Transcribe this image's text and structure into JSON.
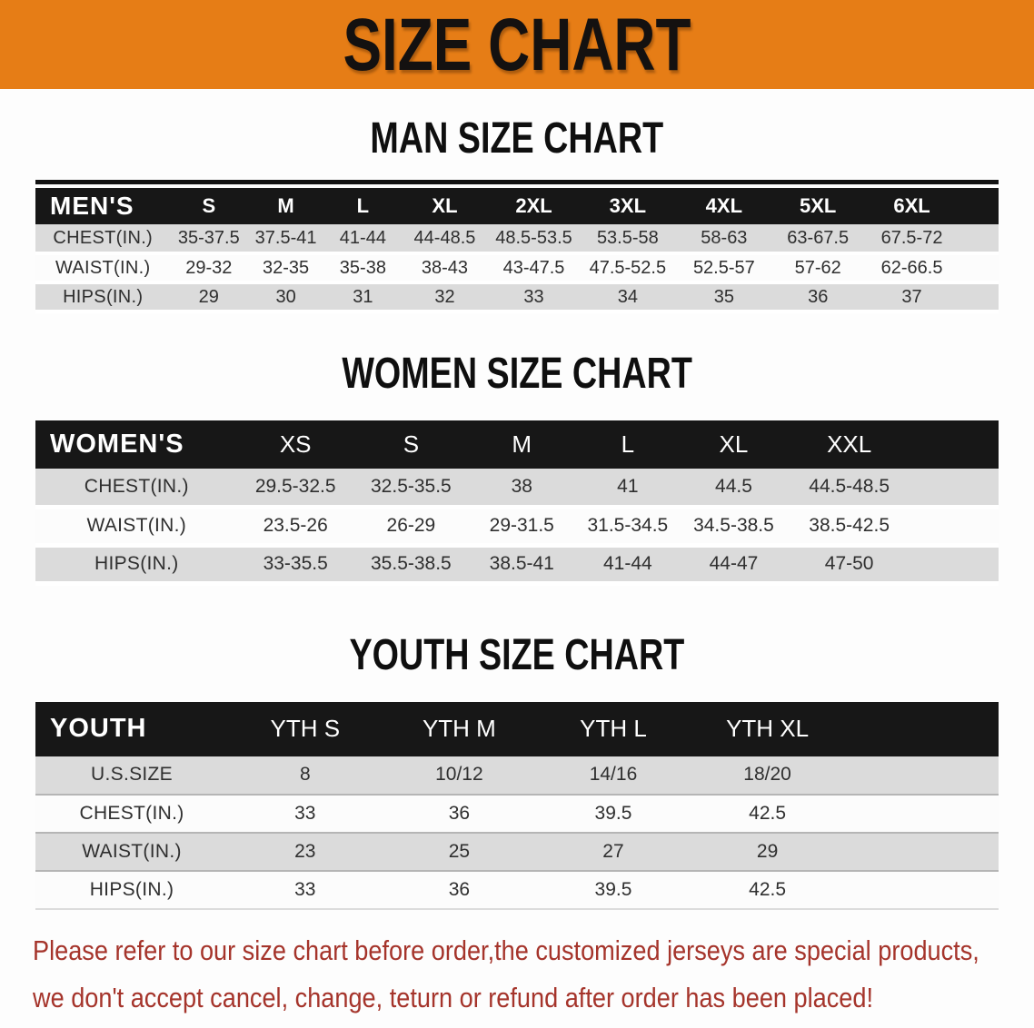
{
  "banner": {
    "title": "SIZE CHART",
    "bg_color": "#E67D16",
    "text_color": "#141110"
  },
  "colors": {
    "table_header_bg": "#171717",
    "table_header_text": "#FFFFFF",
    "stripe_gray": "#DBDBDB",
    "stripe_white": "#FCFCFC",
    "notice_red": "#A5342B"
  },
  "sections": [
    {
      "heading": "MAN SIZE CHART",
      "group_label": "MEN'S",
      "columns": [
        "S",
        "M",
        "L",
        "XL",
        "2XL",
        "3XL",
        "4XL",
        "5XL",
        "6XL"
      ],
      "rows": [
        {
          "label": "CHEST(IN.)",
          "values": [
            "35-37.5",
            "37.5-41",
            "41-44",
            "44-48.5",
            "48.5-53.5",
            "53.5-58",
            "58-63",
            "63-67.5",
            "67.5-72"
          ]
        },
        {
          "label": "WAIST(IN.)",
          "values": [
            "29-32",
            "32-35",
            "35-38",
            "38-43",
            "43-47.5",
            "47.5-52.5",
            "52.5-57",
            "57-62",
            "62-66.5"
          ]
        },
        {
          "label": "HIPS(IN.)",
          "values": [
            "29",
            "30",
            "31",
            "32",
            "33",
            "34",
            "35",
            "36",
            "37"
          ]
        }
      ]
    },
    {
      "heading": "WOMEN SIZE CHART",
      "group_label": "WOMEN'S",
      "columns": [
        "XS",
        "S",
        "M",
        "L",
        "XL",
        "XXL"
      ],
      "rows": [
        {
          "label": "CHEST(IN.)",
          "values": [
            "29.5-32.5",
            "32.5-35.5",
            "38",
            "41",
            "44.5",
            "44.5-48.5"
          ]
        },
        {
          "label": "WAIST(IN.)",
          "values": [
            "23.5-26",
            "26-29",
            "29-31.5",
            "31.5-34.5",
            "34.5-38.5",
            "38.5-42.5"
          ]
        },
        {
          "label": "HIPS(IN.)",
          "values": [
            "33-35.5",
            "35.5-38.5",
            "38.5-41",
            "41-44",
            "44-47",
            "47-50"
          ]
        }
      ]
    },
    {
      "heading": "YOUTH SIZE CHART",
      "group_label": "YOUTH",
      "columns": [
        "YTH S",
        "YTH M",
        "YTH L",
        "YTH XL"
      ],
      "rows": [
        {
          "label": "U.S.SIZE",
          "values": [
            "8",
            "10/12",
            "14/16",
            "18/20"
          ]
        },
        {
          "label": "CHEST(IN.)",
          "values": [
            "33",
            "36",
            "39.5",
            "42.5"
          ]
        },
        {
          "label": "WAIST(IN.)",
          "values": [
            "23",
            "25",
            "27",
            "29"
          ]
        },
        {
          "label": "HIPS(IN.)",
          "values": [
            "33",
            "36",
            "39.5",
            "42.5"
          ]
        }
      ]
    }
  ],
  "notice": {
    "lines": [
      "Please refer to our size chart before order,the customized jerseys are special products,",
      "we don't accept cancel, change, teturn or refund after order has been placed!"
    ]
  }
}
